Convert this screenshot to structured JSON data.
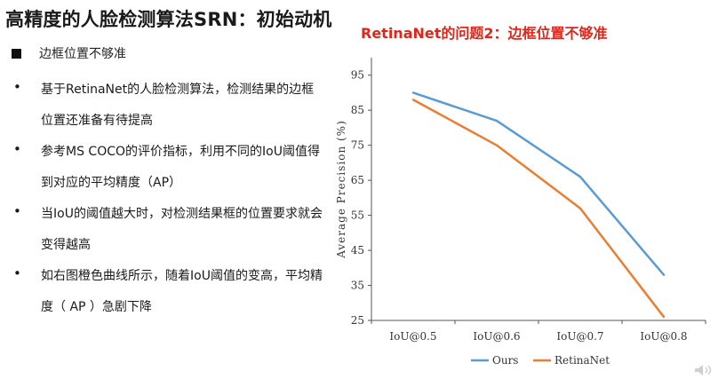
{
  "slide": {
    "title": "高精度的人脸检测算法SRN：初始动机",
    "section": "边框位置不够准",
    "bullets": [
      "基于RetinaNet的人脸检测算法，检测结果的边框位置还准备有待提高",
      "参考MS COCO的评价指标，利用不同的IoU阈值得到对应的平均精度（AP）",
      "当IoU的阈值越大时，对检测结果框的位置要求就会变得越高",
      "如右图橙色曲线所示，随着IoU阈值的变高，平均精度（ AP ）急剧下降"
    ]
  },
  "chart_data": {
    "type": "line",
    "title": "RetinaNet的问题2：边框位置不够准",
    "xlabel": "",
    "ylabel": "Average Precision (%)",
    "categories": [
      "IoU@0.5",
      "IoU@0.6",
      "IoU@0.7",
      "IoU@0.8"
    ],
    "yticks": [
      25,
      35,
      45,
      55,
      65,
      75,
      85,
      95
    ],
    "ylim": [
      25,
      100
    ],
    "grid": false,
    "legend_position": "bottom",
    "series": [
      {
        "name": "Ours",
        "color": "#5b9bd5",
        "values": [
          90,
          82,
          66,
          38
        ]
      },
      {
        "name": "RetinaNet",
        "color": "#ed7d31",
        "values": [
          88,
          75,
          57,
          26
        ]
      }
    ]
  }
}
